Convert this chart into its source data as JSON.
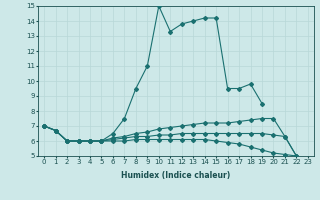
{
  "xlabel": "Humidex (Indice chaleur)",
  "ylabel": "",
  "background_color": "#cde8e8",
  "line_color": "#1a7070",
  "grid_color": "#b8d8d8",
  "xlim": [
    -0.5,
    23.5
  ],
  "ylim": [
    5,
    15
  ],
  "yticks": [
    5,
    6,
    7,
    8,
    9,
    10,
    11,
    12,
    13,
    14,
    15
  ],
  "xticks": [
    0,
    1,
    2,
    3,
    4,
    5,
    6,
    7,
    8,
    9,
    10,
    11,
    12,
    13,
    14,
    15,
    16,
    17,
    18,
    19,
    20,
    21,
    22,
    23
  ],
  "series": [
    {
      "x": [
        0,
        1,
        2,
        3,
        4,
        5,
        6,
        7,
        8,
        9,
        10,
        11,
        12,
        13,
        14,
        15,
        16,
        17,
        18,
        19,
        20,
        21,
        22,
        23
      ],
      "y": [
        7.0,
        6.7,
        6.0,
        6.0,
        6.0,
        6.0,
        6.5,
        7.5,
        9.5,
        11.0,
        15.0,
        13.3,
        13.8,
        14.0,
        14.2,
        14.2,
        9.5,
        9.5,
        9.8,
        8.5,
        null,
        null,
        null,
        null
      ]
    },
    {
      "x": [
        0,
        1,
        2,
        3,
        4,
        5,
        6,
        7,
        8,
        9,
        10,
        11,
        12,
        13,
        14,
        15,
        16,
        17,
        18,
        19,
        20,
        21,
        22,
        23
      ],
      "y": [
        7.0,
        6.7,
        6.0,
        6.0,
        6.0,
        6.0,
        6.2,
        6.3,
        6.5,
        6.6,
        6.8,
        6.9,
        7.0,
        7.1,
        7.2,
        7.2,
        7.2,
        7.3,
        7.4,
        7.5,
        7.5,
        6.3,
        5.0,
        4.7
      ]
    },
    {
      "x": [
        0,
        1,
        2,
        3,
        4,
        5,
        6,
        7,
        8,
        9,
        10,
        11,
        12,
        13,
        14,
        15,
        16,
        17,
        18,
        19,
        20,
        21,
        22,
        23
      ],
      "y": [
        7.0,
        6.7,
        6.0,
        6.0,
        6.0,
        6.0,
        6.1,
        6.2,
        6.3,
        6.3,
        6.4,
        6.4,
        6.5,
        6.5,
        6.5,
        6.5,
        6.5,
        6.5,
        6.5,
        6.5,
        6.4,
        6.3,
        5.0,
        4.7
      ]
    },
    {
      "x": [
        0,
        1,
        2,
        3,
        4,
        5,
        6,
        7,
        8,
        9,
        10,
        11,
        12,
        13,
        14,
        15,
        16,
        17,
        18,
        19,
        20,
        21,
        22,
        23
      ],
      "y": [
        7.0,
        6.7,
        6.0,
        6.0,
        6.0,
        6.0,
        6.0,
        6.0,
        6.1,
        6.1,
        6.1,
        6.1,
        6.1,
        6.1,
        6.1,
        6.0,
        5.9,
        5.8,
        5.6,
        5.4,
        5.2,
        5.1,
        5.0,
        4.7
      ]
    }
  ]
}
